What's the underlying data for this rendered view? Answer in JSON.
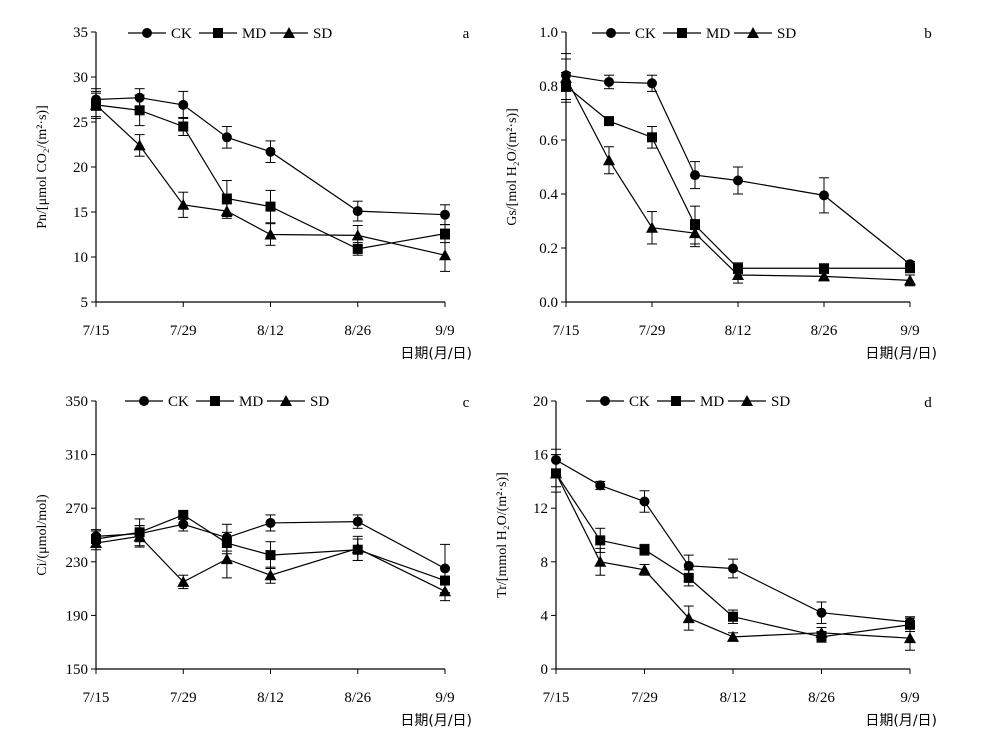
{
  "chart_data": [
    {
      "panel": "a",
      "type": "line",
      "x_tick_labels": [
        "7/15",
        "7/29",
        "8/12",
        "8/26",
        "9/9"
      ],
      "xlabel": "日期(月/日)",
      "ylabel": "Pn/[μmol CO₂/(m²·s)]",
      "ylim": [
        5,
        35
      ],
      "yticks": [
        5,
        10,
        15,
        20,
        25,
        30,
        35
      ],
      "grid": false,
      "legend_position": "top",
      "series": [
        {
          "name": "CK",
          "marker": "circle",
          "x": [
            "7/15",
            "7/22",
            "7/29",
            "8/5",
            "8/12",
            "8/26",
            "9/9"
          ],
          "y": [
            27.5,
            27.7,
            26.9,
            23.3,
            21.7,
            15.1,
            14.7
          ],
          "err": [
            1.2,
            1.0,
            1.5,
            1.2,
            1.2,
            1.1,
            1.1
          ]
        },
        {
          "name": "MD",
          "marker": "square",
          "x": [
            "7/15",
            "7/22",
            "7/29",
            "8/5",
            "8/12",
            "8/26",
            "9/9"
          ],
          "y": [
            26.9,
            26.3,
            24.5,
            16.5,
            15.6,
            10.9,
            12.6
          ],
          "err": [
            1.3,
            1.7,
            1.0,
            2.0,
            1.8,
            0.7,
            1.0
          ]
        },
        {
          "name": "SD",
          "marker": "triangle",
          "x": [
            "7/15",
            "7/22",
            "7/29",
            "8/5",
            "8/12",
            "8/26",
            "9/9"
          ],
          "y": [
            26.9,
            22.4,
            15.8,
            15.1,
            12.5,
            12.4,
            10.2
          ],
          "err": [
            1.5,
            1.2,
            1.4,
            0.8,
            1.2,
            1.1,
            1.8
          ]
        }
      ]
    },
    {
      "panel": "b",
      "type": "line",
      "x_tick_labels": [
        "7/15",
        "7/29",
        "8/12",
        "8/26",
        "9/9"
      ],
      "xlabel": "日期(月/日)",
      "ylabel": "Gs/[mol H₂O/(m²·s)]",
      "ylim": [
        0,
        1.0
      ],
      "yticks": [
        0.0,
        0.2,
        0.4,
        0.6,
        0.8,
        1.0
      ],
      "tick_format": "0.0",
      "grid": false,
      "legend_position": "top",
      "series": [
        {
          "name": "CK",
          "marker": "circle",
          "x": [
            "7/15",
            "7/22",
            "7/29",
            "8/5",
            "8/12",
            "8/26",
            "9/9"
          ],
          "y": [
            0.84,
            0.815,
            0.81,
            0.47,
            0.45,
            0.395,
            0.14
          ],
          "err": [
            0.06,
            0.025,
            0.03,
            0.05,
            0.05,
            0.065,
            0.01
          ]
        },
        {
          "name": "MD",
          "marker": "square",
          "x": [
            "7/15",
            "7/22",
            "7/29",
            "8/5",
            "8/12",
            "8/26",
            "9/9"
          ],
          "y": [
            0.8,
            0.67,
            0.61,
            0.285,
            0.125,
            0.125,
            0.125
          ],
          "err": [
            0.05,
            0.01,
            0.04,
            0.07,
            0.02,
            0.01,
            0.01
          ]
        },
        {
          "name": "SD",
          "marker": "triangle",
          "x": [
            "7/15",
            "7/22",
            "7/29",
            "8/5",
            "8/12",
            "8/26",
            "9/9"
          ],
          "y": [
            0.83,
            0.525,
            0.275,
            0.255,
            0.1,
            0.095,
            0.08
          ],
          "err": [
            0.09,
            0.05,
            0.06,
            0.05,
            0.03,
            0.01,
            0.02
          ]
        }
      ]
    },
    {
      "panel": "c",
      "type": "line",
      "x_tick_labels": [
        "7/15",
        "7/29",
        "8/12",
        "8/26",
        "9/9"
      ],
      "xlabel": "日期(月/日)",
      "ylabel": "Ci/(μmol/mol)",
      "ylim": [
        150,
        350
      ],
      "yticks": [
        150,
        190,
        230,
        270,
        310,
        350
      ],
      "grid": false,
      "legend_position": "top",
      "series": [
        {
          "name": "CK",
          "marker": "circle",
          "x": [
            "7/15",
            "7/22",
            "7/29",
            "8/5",
            "8/12",
            "8/26",
            "9/9"
          ],
          "y": [
            249,
            251,
            258,
            248,
            259,
            260,
            225
          ],
          "err": [
            5,
            6,
            5,
            10,
            6,
            5,
            18
          ]
        },
        {
          "name": "MD",
          "marker": "square",
          "x": [
            "7/15",
            "7/22",
            "7/29",
            "8/5",
            "8/12",
            "8/26",
            "9/9"
          ],
          "y": [
            247,
            252,
            265,
            244,
            235,
            239,
            216
          ],
          "err": [
            6,
            10,
            3,
            8,
            10,
            8,
            10
          ]
        },
        {
          "name": "SD",
          "marker": "triangle",
          "x": [
            "7/15",
            "7/22",
            "7/29",
            "8/5",
            "8/12",
            "8/26",
            "9/9"
          ],
          "y": [
            244,
            249,
            215,
            232,
            220,
            240,
            208
          ],
          "err": [
            5,
            8,
            5,
            14,
            6,
            9,
            7
          ]
        }
      ]
    },
    {
      "panel": "d",
      "type": "line",
      "x_tick_labels": [
        "7/15",
        "7/29",
        "8/12",
        "8/26",
        "9/9"
      ],
      "xlabel": "日期(月/日)",
      "ylabel": "Tr/[mmol H₂O/(m²·s)]",
      "ylim": [
        0,
        20
      ],
      "yticks": [
        0,
        4,
        8,
        12,
        16,
        20
      ],
      "grid": false,
      "legend_position": "top",
      "series": [
        {
          "name": "CK",
          "marker": "circle",
          "x": [
            "7/15",
            "7/22",
            "7/29",
            "8/5",
            "8/12",
            "8/26",
            "9/9"
          ],
          "y": [
            15.6,
            13.7,
            12.5,
            7.7,
            7.5,
            4.2,
            3.5
          ],
          "err": [
            0.8,
            0.3,
            0.8,
            0.8,
            0.7,
            0.8,
            0.4
          ]
        },
        {
          "name": "MD",
          "marker": "square",
          "x": [
            "7/15",
            "7/22",
            "7/29",
            "8/5",
            "8/12",
            "8/26",
            "9/9"
          ],
          "y": [
            14.6,
            9.6,
            8.9,
            6.8,
            3.9,
            2.4,
            3.3
          ],
          "err": [
            1.0,
            0.9,
            0.4,
            0.6,
            0.5,
            0.4,
            0.5
          ]
        },
        {
          "name": "SD",
          "marker": "triangle",
          "x": [
            "7/15",
            "7/22",
            "7/29",
            "8/5",
            "8/12",
            "8/26",
            "9/9"
          ],
          "y": [
            14.6,
            8.0,
            7.4,
            3.8,
            2.4,
            2.7,
            2.3
          ],
          "err": [
            1.4,
            1.0,
            0.4,
            0.9,
            0.3,
            0.4,
            0.9
          ]
        }
      ]
    }
  ]
}
